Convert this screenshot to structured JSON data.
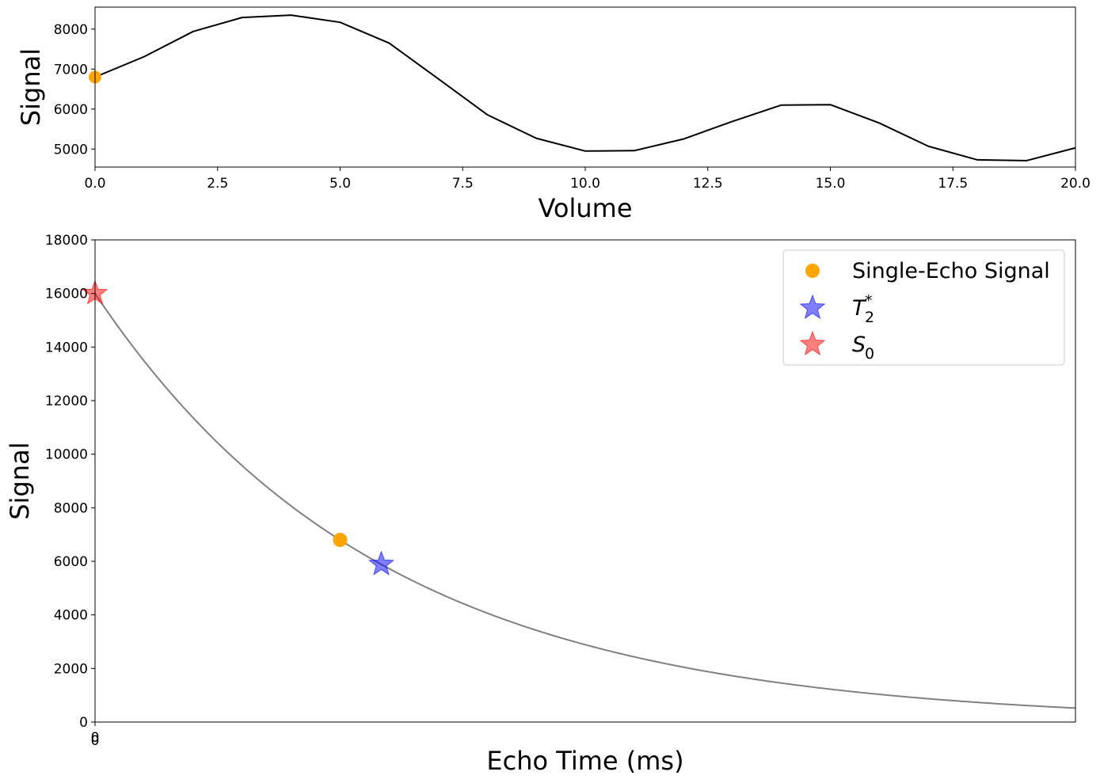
{
  "chart_data": [
    {
      "type": "line",
      "name": "signal-over-volume",
      "xlabel": "Volume",
      "ylabel": "Signal",
      "xlim": [
        0,
        20
      ],
      "ylim": [
        4550,
        8550
      ],
      "xticks": [
        0.0,
        2.5,
        5.0,
        7.5,
        10.0,
        12.5,
        15.0,
        17.5,
        20.0
      ],
      "xtick_labels": [
        "0.0",
        "2.5",
        "5.0",
        "7.5",
        "10.0",
        "12.5",
        "15.0",
        "17.5",
        "20.0"
      ],
      "yticks": [
        5000,
        6000,
        7000,
        8000
      ],
      "ytick_labels": [
        "5000",
        "6000",
        "7000",
        "8000"
      ],
      "series": [
        {
          "name": "signal",
          "color": "#000000",
          "x": [
            0,
            1,
            2,
            3,
            4,
            5,
            6,
            7,
            8,
            9,
            10,
            11,
            12,
            13,
            14,
            15,
            16,
            17,
            18,
            19,
            20
          ],
          "y": [
            6800,
            7310,
            7940,
            8290,
            8350,
            8170,
            7650,
            6760,
            5860,
            5270,
            4950,
            4960,
            5250,
            5690,
            6100,
            6110,
            5650,
            5070,
            4730,
            4710,
            5030
          ]
        }
      ],
      "markers": [
        {
          "name": "current-volume",
          "x": 0,
          "y": 6800,
          "color": "#ffa500"
        }
      ]
    },
    {
      "type": "line",
      "name": "signal-decay",
      "xlabel": "Echo Time (ms)",
      "ylabel": "Signal",
      "xlim": [
        0,
        100
      ],
      "ylim": [
        0,
        18000
      ],
      "xticks": [
        0,
        0
      ],
      "xtick_labels": [
        "0",
        "0"
      ],
      "yticks": [
        0,
        2000,
        4000,
        6000,
        8000,
        10000,
        12000,
        14000,
        16000,
        18000
      ],
      "ytick_labels": [
        "0",
        "2000",
        "4000",
        "6000",
        "8000",
        "10000",
        "12000",
        "14000",
        "16000",
        "18000"
      ],
      "decay_curve": {
        "S0": 16000,
        "T2star": 29.2,
        "color": "#808080"
      },
      "points": [
        {
          "name": "single-echo-signal",
          "label": "Single-Echo Signal",
          "x": 25,
          "y": 6800,
          "marker": "circle",
          "color": "#ffa500",
          "alpha": 1.0
        },
        {
          "name": "t2star",
          "label": "T",
          "label_sub": "2",
          "label_sup": "*",
          "x": 29.2,
          "y": 5890,
          "marker": "star",
          "color": "#0000ff",
          "alpha": 0.5
        },
        {
          "name": "s0",
          "label": "S",
          "label_sub": "0",
          "x": 0,
          "y": 16000,
          "marker": "star",
          "color": "#ff0000",
          "alpha": 0.5
        }
      ],
      "legend": {
        "placement": "upper right"
      }
    }
  ]
}
